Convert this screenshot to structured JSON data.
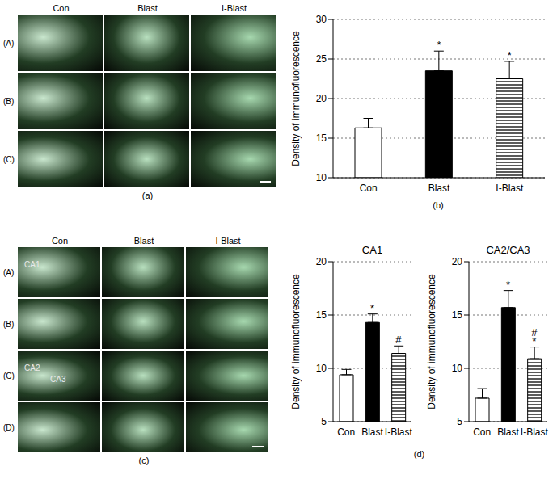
{
  "chart_data": [
    {
      "type": "bar",
      "annotations": [
        "(b)"
      ],
      "y_label": "Density of immunofluorescence",
      "categories": [
        "Con",
        "Blast",
        "I-Blast"
      ],
      "values": [
        16.3,
        23.5,
        22.5
      ],
      "error": [
        1.2,
        2.5,
        2.2
      ],
      "significance": [
        null,
        [
          "*"
        ],
        [
          "*"
        ]
      ],
      "colors": [
        "#ffffff",
        "#000000",
        "#000000"
      ],
      "ylim": [
        10,
        30
      ],
      "yticks": [
        10,
        15,
        20,
        25,
        30
      ],
      "grid": true
    },
    {
      "type": "bar",
      "title": "CA1",
      "y_label": "Density of immunofluorescence",
      "categories": [
        "Con",
        "Blast",
        "I-Blast"
      ],
      "values": [
        9.4,
        14.3,
        11.4
      ],
      "error": [
        0.5,
        0.8,
        0.7
      ],
      "significance": [
        null,
        [
          "*"
        ],
        [
          "#"
        ]
      ],
      "colors": [
        "#ffffff",
        "#000000",
        "#000000"
      ],
      "ylim": [
        5,
        20
      ],
      "yticks": [
        5,
        10,
        15,
        20
      ],
      "grid": true
    },
    {
      "type": "bar",
      "title": "CA2/CA3",
      "annotations": [
        "(d)"
      ],
      "y_label": "Density of immunofluorescence",
      "categories": [
        "Con",
        "Blast",
        "I-Blast"
      ],
      "values": [
        7.2,
        15.7,
        10.9
      ],
      "error": [
        0.9,
        1.6,
        1.1
      ],
      "significance": [
        null,
        [
          "*"
        ],
        [
          "#",
          "*"
        ]
      ],
      "colors": [
        "#ffffff",
        "#000000",
        "#000000"
      ],
      "ylim": [
        5,
        20
      ],
      "yticks": [
        5,
        10,
        15,
        20
      ],
      "grid": true
    }
  ],
  "image_panels": [
    {
      "label": "(a)",
      "columns": [
        "Con",
        "Blast",
        "I-Blast"
      ],
      "rows": [
        {
          "label": "(A)"
        },
        {
          "label": "(B)"
        },
        {
          "label": "(C)"
        }
      ]
    },
    {
      "label": "(c)",
      "columns": [
        "Con",
        "Blast",
        "I-Blast"
      ],
      "rows": [
        {
          "label": "(A)",
          "texts": [
            "CA1"
          ]
        },
        {
          "label": "(B)"
        },
        {
          "label": "(C)",
          "texts": [
            "CA2",
            "CA3"
          ]
        },
        {
          "label": "(D)"
        }
      ]
    }
  ]
}
